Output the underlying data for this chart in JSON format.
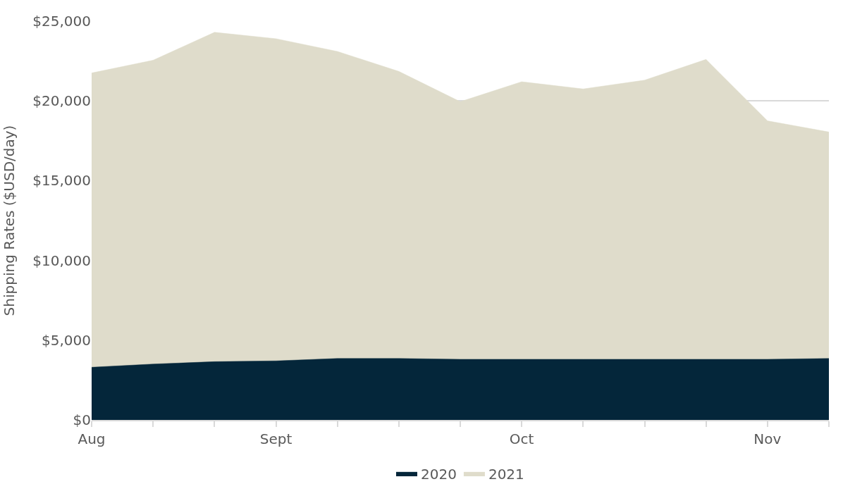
{
  "chart_data": {
    "type": "area",
    "ylabel": "Shipping Rates ($USD/day)",
    "categories": [
      "Aug",
      null,
      null,
      "Sept",
      null,
      null,
      null,
      "Oct",
      null,
      null,
      null,
      "Nov",
      null
    ],
    "series": [
      {
        "name": "2020",
        "color": "#04263a",
        "values": [
          3300,
          3500,
          3650,
          3700,
          3850,
          3850,
          3800,
          3800,
          3800,
          3800,
          3800,
          3800,
          3850
        ]
      },
      {
        "name": "2021",
        "color": "#dfdccb",
        "values": [
          21750,
          22550,
          24300,
          23900,
          23100,
          21850,
          19950,
          21200,
          20750,
          21300,
          22600,
          18750,
          18050
        ]
      }
    ],
    "ylim": [
      0,
      25000
    ],
    "yticks": [
      {
        "value": 0,
        "label": "$0"
      },
      {
        "value": 5000,
        "label": "$5,000"
      },
      {
        "value": 10000,
        "label": "$10,000"
      },
      {
        "value": 15000,
        "label": "$15,000"
      },
      {
        "value": 20000,
        "label": "$20,000"
      },
      {
        "value": 25000,
        "label": "$25,000"
      }
    ],
    "grid": "y",
    "legend": "bottom"
  }
}
